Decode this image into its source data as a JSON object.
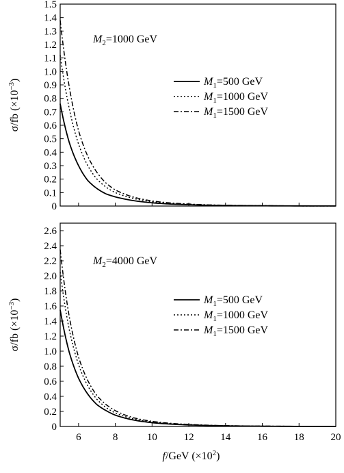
{
  "chart_data": [
    {
      "type": "line",
      "x": [
        5,
        5.5,
        6,
        6.5,
        7,
        7.5,
        8,
        9,
        10,
        11,
        12,
        13,
        14,
        16,
        18,
        20
      ],
      "series": [
        {
          "name": "M1=500 GeV",
          "style": "solid",
          "values": [
            0.76,
            0.47,
            0.3,
            0.19,
            0.13,
            0.09,
            0.068,
            0.04,
            0.024,
            0.015,
            0.01,
            0.006,
            0.004,
            0.002,
            0.001,
            0.0005
          ]
        },
        {
          "name": "M1=1000 GeV",
          "style": "dotted",
          "values": [
            1.12,
            0.72,
            0.46,
            0.3,
            0.2,
            0.14,
            0.1,
            0.056,
            0.032,
            0.02,
            0.013,
            0.008,
            0.005,
            0.002,
            0.001,
            0.0005
          ]
        },
        {
          "name": "M1=1500 GeV",
          "style": "dashdot",
          "values": [
            1.38,
            0.88,
            0.56,
            0.37,
            0.25,
            0.17,
            0.12,
            0.066,
            0.038,
            0.023,
            0.015,
            0.009,
            0.006,
            0.003,
            0.001,
            0.0005
          ]
        }
      ],
      "annotation": {
        "sym": "M",
        "sub": "2",
        "rest": "=1000 GeV"
      },
      "legend": [
        {
          "sym": "M",
          "sub": "1",
          "rest": "=500 GeV",
          "style": "solid"
        },
        {
          "sym": "M",
          "sub": "1",
          "rest": "=1000 GeV",
          "style": "dotted"
        },
        {
          "sym": "M",
          "sub": "1",
          "rest": "=1500 GeV",
          "style": "dashdot"
        }
      ],
      "ylabel": {
        "main": "σ/fb  (×10",
        "sup": "−3",
        "close": ")"
      },
      "ylim": [
        0,
        1.5
      ],
      "yticks": [
        "0",
        "0.1",
        "0.2",
        "0.3",
        "0.4",
        "0.5",
        "0.6",
        "0.7",
        "0.8",
        "0.9",
        "1.0",
        "1.1",
        "1.2",
        "1.3",
        "1.4",
        "1.5"
      ],
      "xlim": [
        5,
        20
      ],
      "xticks": [],
      "legend_position": "right-middle",
      "grid": false
    },
    {
      "type": "line",
      "x": [
        5,
        5.5,
        6,
        6.5,
        7,
        7.5,
        8,
        9,
        10,
        11,
        12,
        13,
        14,
        16,
        18,
        20
      ],
      "series": [
        {
          "name": "M1=500 GeV",
          "style": "solid",
          "values": [
            1.55,
            0.98,
            0.64,
            0.43,
            0.29,
            0.21,
            0.15,
            0.085,
            0.05,
            0.031,
            0.02,
            0.013,
            0.008,
            0.003,
            0.0012,
            0.0005
          ]
        },
        {
          "name": "M1=1000 GeV",
          "style": "dotted",
          "values": [
            2.05,
            1.28,
            0.82,
            0.54,
            0.36,
            0.25,
            0.18,
            0.1,
            0.06,
            0.036,
            0.023,
            0.015,
            0.009,
            0.004,
            0.0015,
            0.0006
          ]
        },
        {
          "name": "M1=1500 GeV",
          "style": "dashdot",
          "values": [
            2.35,
            1.45,
            0.92,
            0.61,
            0.41,
            0.29,
            0.21,
            0.115,
            0.068,
            0.042,
            0.027,
            0.017,
            0.011,
            0.005,
            0.002,
            0.0008
          ]
        }
      ],
      "annotation": {
        "sym": "M",
        "sub": "2",
        "rest": "=4000 GeV"
      },
      "legend": [
        {
          "sym": "M",
          "sub": "1",
          "rest": "=500 GeV",
          "style": "solid"
        },
        {
          "sym": "M",
          "sub": "1",
          "rest": "=1000 GeV",
          "style": "dotted"
        },
        {
          "sym": "M",
          "sub": "1",
          "rest": "=1500 GeV",
          "style": "dashdot"
        }
      ],
      "ylabel": {
        "main": "σ/fb  (×10",
        "sup": "−3",
        "close": ")"
      },
      "ylim": [
        0,
        2.7
      ],
      "yticks": [
        "0",
        "0.2",
        "0.4",
        "0.6",
        "0.8",
        "1.0",
        "1.2",
        "1.4",
        "1.6",
        "1.8",
        "2.0",
        "2.2",
        "2.4",
        "2.6"
      ],
      "xlim": [
        5,
        20
      ],
      "xticks": [
        "6",
        "8",
        "10",
        "12",
        "14",
        "16",
        "18",
        "20"
      ],
      "xlabel": {
        "sym": "f",
        "rest": "/GeV  (×10",
        "sup": "2",
        "close": ")"
      },
      "legend_position": "right-middle",
      "grid": false
    }
  ]
}
